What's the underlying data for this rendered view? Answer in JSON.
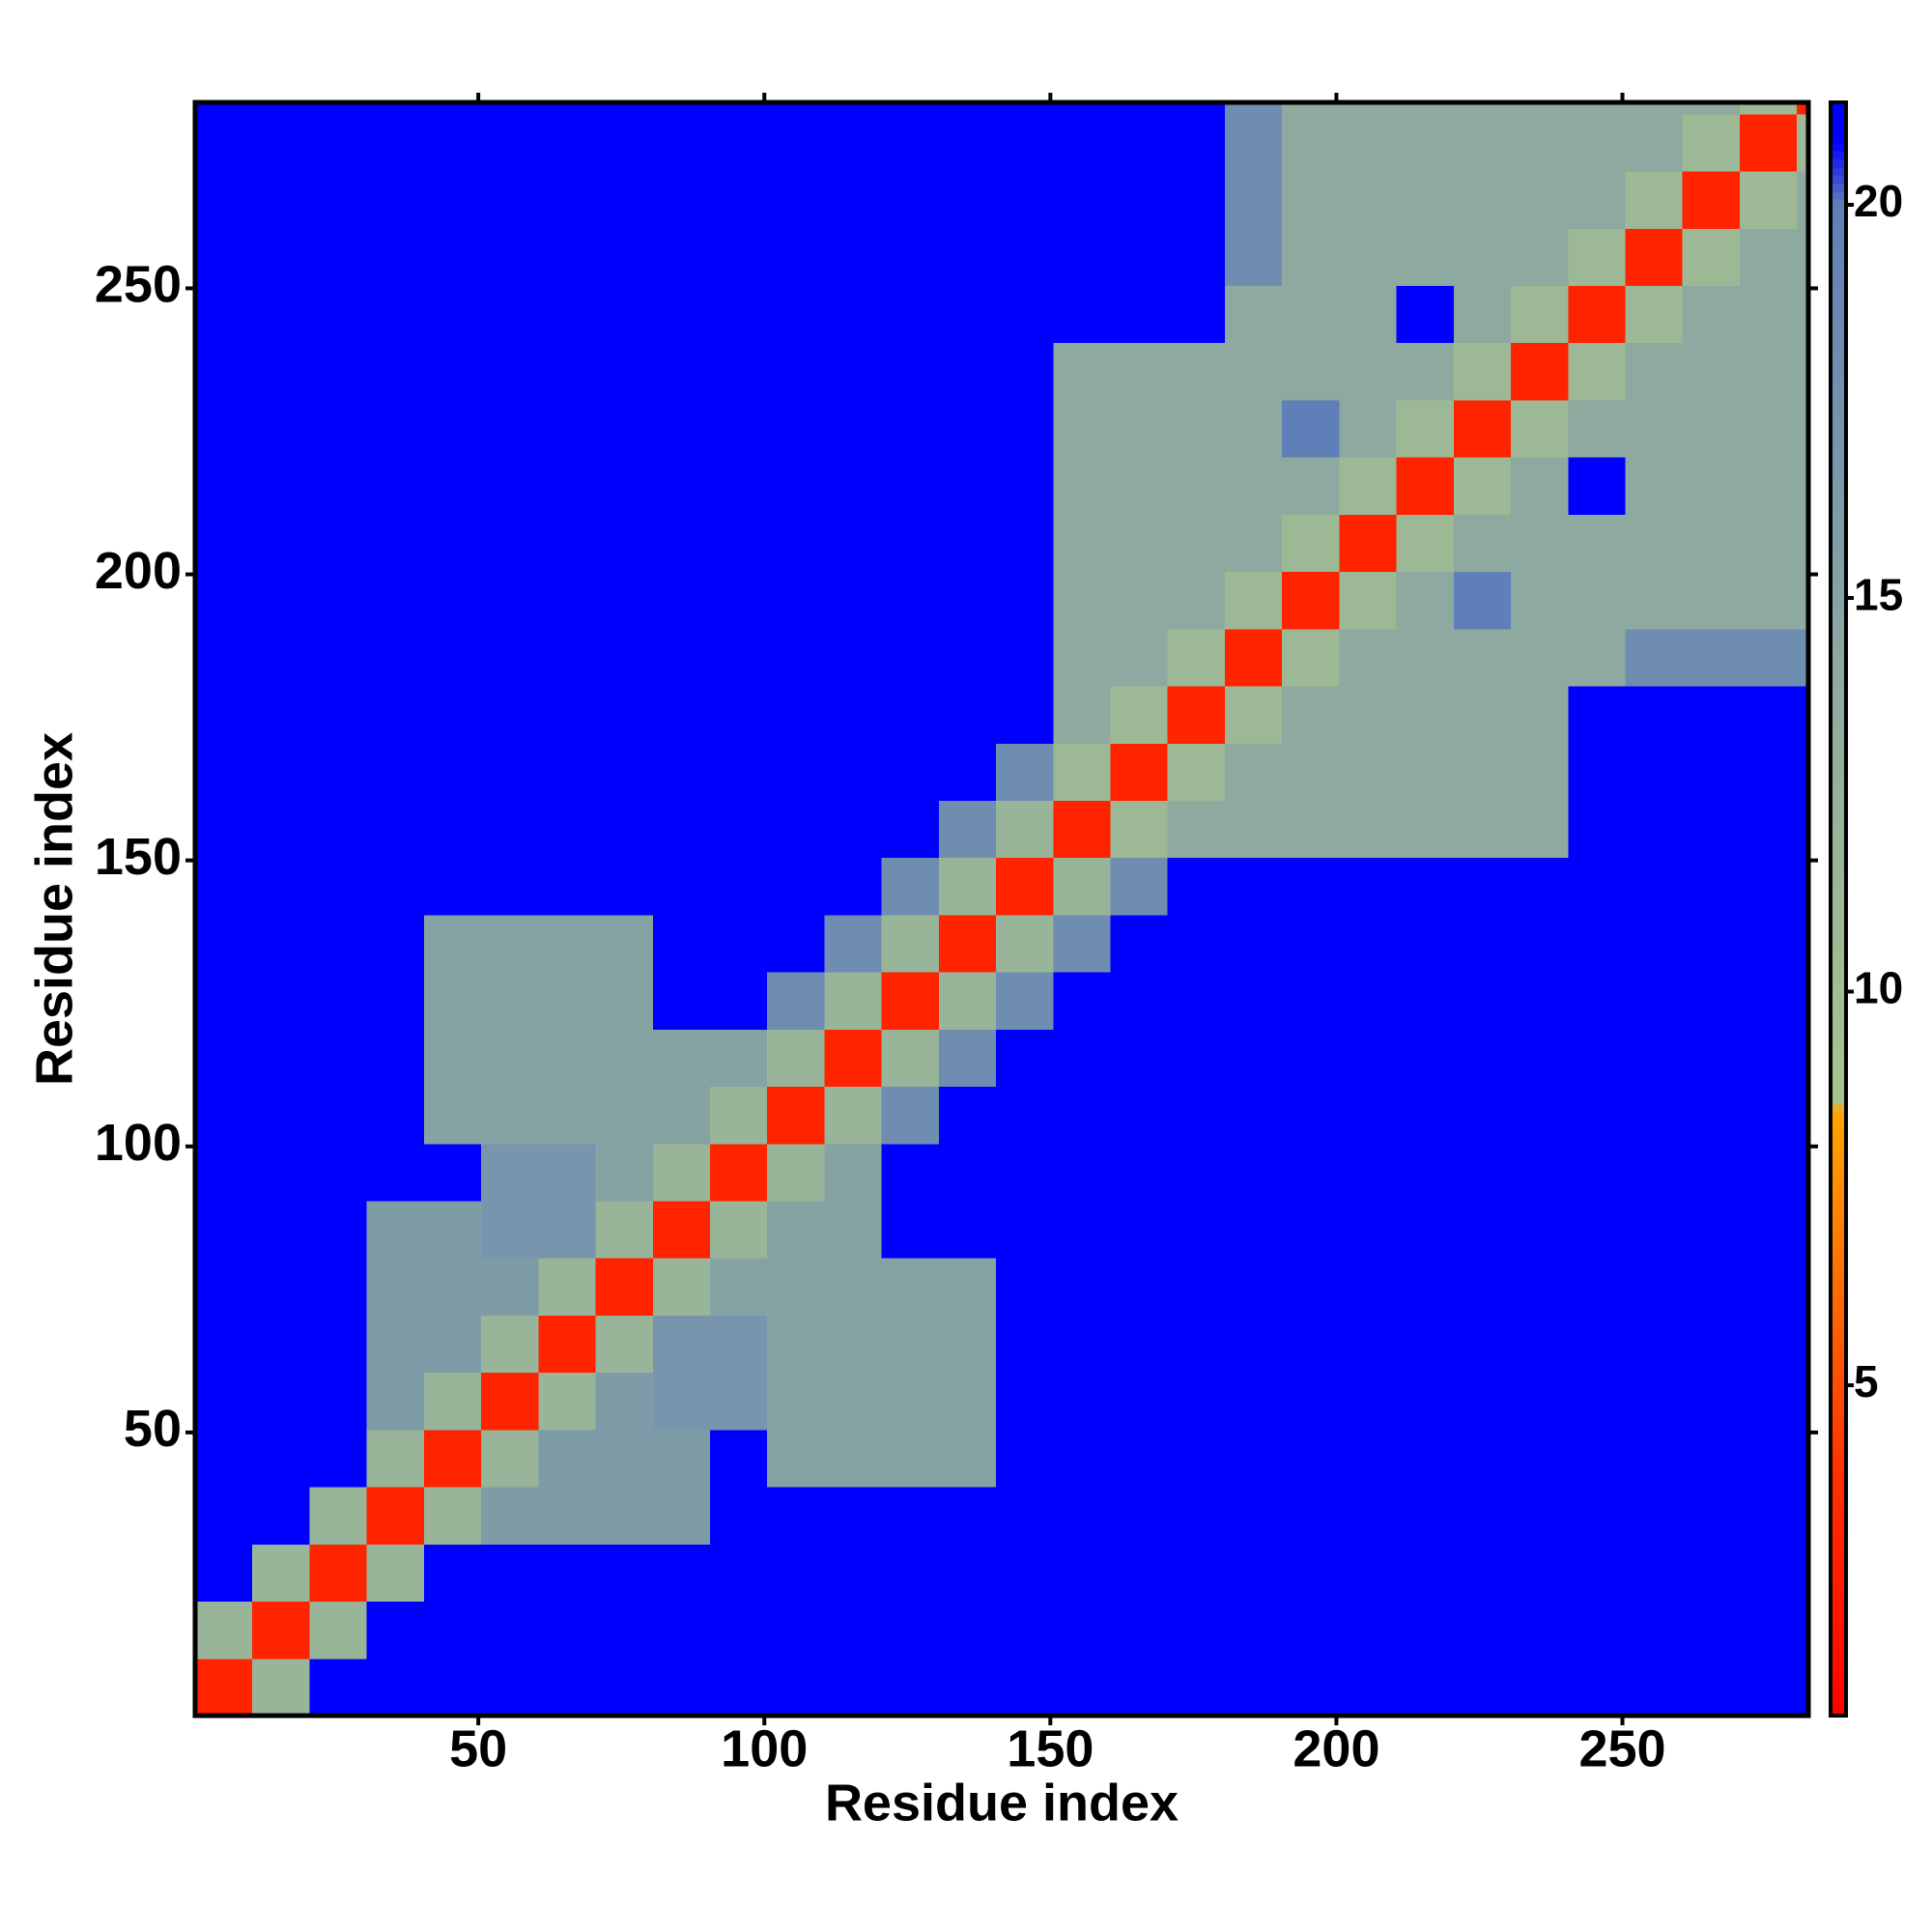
{
  "chart_data": {
    "type": "heatmap",
    "xlabel": "Residue index",
    "ylabel": "Residue index",
    "bins": [
      0.5,
      10.5,
      20.5,
      30.5,
      40.5,
      50.5,
      60.5,
      70.5,
      80.5,
      90.5,
      100.5,
      110.5,
      120.5,
      130.5,
      140.5,
      150.5,
      160.5,
      170.5,
      180.5,
      190.5,
      200.5,
      210.5,
      220.5,
      230.5,
      240.5,
      250.5,
      260.5,
      270.5,
      280.5,
      282.5
    ],
    "values": [
      [
        3,
        12,
        21,
        21,
        21,
        21,
        21,
        21,
        21,
        21,
        21,
        21,
        21,
        21,
        21,
        21,
        21,
        21,
        21,
        21,
        21,
        21,
        21,
        21,
        21,
        21,
        21,
        21,
        21
      ],
      [
        12,
        3,
        12,
        21,
        21,
        21,
        21,
        21,
        21,
        21,
        21,
        21,
        21,
        21,
        21,
        21,
        21,
        21,
        21,
        21,
        21,
        21,
        21,
        21,
        21,
        21,
        21,
        21,
        21
      ],
      [
        21,
        12,
        3,
        12,
        21,
        21,
        21,
        21,
        21,
        21,
        21,
        21,
        21,
        21,
        21,
        21,
        21,
        21,
        21,
        21,
        21,
        21,
        21,
        21,
        21,
        21,
        21,
        21,
        21
      ],
      [
        21,
        21,
        12,
        3,
        12,
        16,
        16,
        16,
        16,
        21,
        21,
        21,
        21,
        21,
        21,
        21,
        21,
        21,
        21,
        21,
        21,
        21,
        21,
        21,
        21,
        21,
        21,
        21,
        21
      ],
      [
        21,
        21,
        21,
        12,
        3,
        12,
        16,
        16,
        16,
        21,
        15,
        15,
        15,
        15,
        21,
        21,
        21,
        21,
        21,
        21,
        21,
        21,
        21,
        21,
        21,
        21,
        21,
        21,
        21
      ],
      [
        21,
        21,
        21,
        16,
        12,
        3,
        12,
        16,
        17,
        17,
        15,
        15,
        15,
        15,
        21,
        21,
        21,
        21,
        21,
        21,
        21,
        21,
        21,
        21,
        21,
        21,
        21,
        21,
        21
      ],
      [
        21,
        21,
        21,
        16,
        16,
        12,
        3,
        12,
        17,
        17,
        15,
        15,
        15,
        15,
        21,
        21,
        21,
        21,
        21,
        21,
        21,
        21,
        21,
        21,
        21,
        21,
        21,
        21,
        21
      ],
      [
        21,
        21,
        21,
        16,
        16,
        16,
        12,
        3,
        12,
        15,
        15,
        15,
        15,
        15,
        21,
        21,
        21,
        21,
        21,
        21,
        21,
        21,
        21,
        21,
        21,
        21,
        21,
        21,
        21
      ],
      [
        21,
        21,
        21,
        16,
        16,
        17,
        17,
        12,
        3,
        12,
        15,
        15,
        21,
        21,
        21,
        21,
        21,
        21,
        21,
        21,
        21,
        21,
        21,
        21,
        21,
        21,
        21,
        21,
        21
      ],
      [
        21,
        21,
        21,
        21,
        21,
        17,
        17,
        15,
        12,
        3,
        12,
        15,
        21,
        21,
        21,
        21,
        21,
        21,
        21,
        21,
        21,
        21,
        21,
        21,
        21,
        21,
        21,
        21,
        21
      ],
      [
        21,
        21,
        21,
        21,
        15,
        15,
        15,
        15,
        15,
        12,
        3,
        12,
        18,
        21,
        21,
        21,
        21,
        21,
        21,
        21,
        21,
        21,
        21,
        21,
        21,
        21,
        21,
        21,
        21
      ],
      [
        21,
        21,
        21,
        21,
        15,
        15,
        15,
        15,
        15,
        15,
        12,
        3,
        12,
        18,
        21,
        21,
        21,
        21,
        21,
        21,
        21,
        21,
        21,
        21,
        21,
        21,
        21,
        21,
        21
      ],
      [
        21,
        21,
        21,
        21,
        15,
        15,
        15,
        15,
        21,
        21,
        18,
        12,
        3,
        12,
        18,
        21,
        21,
        21,
        21,
        21,
        21,
        21,
        21,
        21,
        21,
        21,
        21,
        21,
        21
      ],
      [
        21,
        21,
        21,
        21,
        15,
        15,
        15,
        15,
        21,
        21,
        21,
        18,
        12,
        3,
        12,
        18,
        21,
        21,
        21,
        21,
        21,
        21,
        21,
        21,
        21,
        21,
        21,
        21,
        21
      ],
      [
        21,
        21,
        21,
        21,
        21,
        21,
        21,
        21,
        21,
        21,
        21,
        21,
        18,
        12,
        3,
        12,
        18,
        21,
        21,
        21,
        21,
        21,
        21,
        21,
        21,
        21,
        21,
        21,
        21
      ],
      [
        21,
        21,
        21,
        21,
        21,
        21,
        21,
        21,
        21,
        21,
        21,
        21,
        21,
        18,
        12,
        3,
        11,
        14,
        14,
        14,
        14,
        14,
        14,
        14,
        21,
        21,
        21,
        21,
        21
      ],
      [
        21,
        21,
        21,
        21,
        21,
        21,
        21,
        21,
        21,
        21,
        21,
        21,
        21,
        21,
        18,
        11,
        3,
        11,
        14,
        14,
        14,
        14,
        14,
        14,
        21,
        21,
        21,
        21,
        21
      ],
      [
        21,
        21,
        21,
        21,
        21,
        21,
        21,
        21,
        21,
        21,
        21,
        21,
        21,
        21,
        21,
        14,
        11,
        3,
        11,
        14,
        14,
        14,
        14,
        14,
        21,
        21,
        21,
        21,
        21
      ],
      [
        21,
        21,
        21,
        21,
        21,
        21,
        21,
        21,
        21,
        21,
        21,
        21,
        21,
        21,
        21,
        14,
        14,
        11,
        3,
        11,
        14,
        14,
        14,
        14,
        14,
        18,
        18,
        18,
        18
      ],
      [
        21,
        21,
        21,
        21,
        21,
        21,
        21,
        21,
        21,
        21,
        21,
        21,
        21,
        21,
        21,
        14,
        14,
        14,
        11,
        3,
        11,
        14,
        20,
        14,
        14,
        14,
        14,
        14,
        14
      ],
      [
        21,
        21,
        21,
        21,
        21,
        21,
        21,
        21,
        21,
        21,
        21,
        21,
        21,
        21,
        21,
        14,
        14,
        14,
        14,
        11,
        3,
        11,
        14,
        14,
        14,
        14,
        14,
        14,
        14
      ],
      [
        21,
        21,
        21,
        21,
        21,
        21,
        21,
        21,
        21,
        21,
        21,
        21,
        21,
        21,
        21,
        14,
        14,
        14,
        14,
        14,
        11,
        3,
        11,
        14,
        21,
        14,
        14,
        14,
        14
      ],
      [
        21,
        21,
        21,
        21,
        21,
        21,
        21,
        21,
        21,
        21,
        21,
        21,
        21,
        21,
        21,
        14,
        14,
        14,
        14,
        20,
        14,
        11,
        3,
        11,
        14,
        14,
        14,
        14,
        14
      ],
      [
        21,
        21,
        21,
        21,
        21,
        21,
        21,
        21,
        21,
        21,
        21,
        21,
        21,
        21,
        21,
        14,
        14,
        14,
        14,
        14,
        14,
        14,
        11,
        3,
        11,
        14,
        14,
        14,
        14
      ],
      [
        21,
        21,
        21,
        21,
        21,
        21,
        21,
        21,
        21,
        21,
        21,
        21,
        21,
        21,
        21,
        21,
        21,
        21,
        14,
        14,
        14,
        21,
        14,
        11,
        3,
        11,
        14,
        14,
        14
      ],
      [
        21,
        21,
        21,
        21,
        21,
        21,
        21,
        21,
        21,
        21,
        21,
        21,
        21,
        21,
        21,
        21,
        21,
        21,
        18,
        14,
        14,
        14,
        14,
        14,
        11,
        3,
        11,
        14,
        14
      ],
      [
        21,
        21,
        21,
        21,
        21,
        21,
        21,
        21,
        21,
        21,
        21,
        21,
        21,
        21,
        21,
        21,
        21,
        21,
        18,
        14,
        14,
        14,
        14,
        14,
        14,
        11,
        3,
        11,
        14
      ],
      [
        21,
        21,
        21,
        21,
        21,
        21,
        21,
        21,
        21,
        21,
        21,
        21,
        21,
        21,
        21,
        21,
        21,
        21,
        18,
        14,
        14,
        14,
        14,
        14,
        14,
        14,
        11,
        3,
        11
      ],
      [
        21,
        21,
        21,
        21,
        21,
        21,
        21,
        21,
        21,
        21,
        21,
        21,
        21,
        21,
        21,
        21,
        21,
        21,
        18,
        14,
        14,
        14,
        14,
        14,
        14,
        14,
        14,
        11,
        3
      ]
    ],
    "xlim": [
      0.5,
      282.5
    ],
    "ylim": [
      0.5,
      282.5
    ],
    "xticks": [
      50,
      100,
      150,
      200,
      250
    ],
    "yticks": [
      50,
      100,
      150,
      200,
      250
    ],
    "clim": [
      0.8,
      21.3
    ],
    "cticks": [
      5,
      10,
      15,
      20
    ],
    "colorscale": [
      [
        0.8,
        "#ff0000"
      ],
      [
        4,
        "#ff3300"
      ],
      [
        8.5,
        "#ffa500"
      ],
      [
        8.6,
        "#a8c48c"
      ],
      [
        14,
        "#8eaaa0"
      ],
      [
        20,
        "#5f7fb8"
      ],
      [
        20.8,
        "#0000ff"
      ],
      [
        21.3,
        "#0000ff"
      ]
    ]
  }
}
